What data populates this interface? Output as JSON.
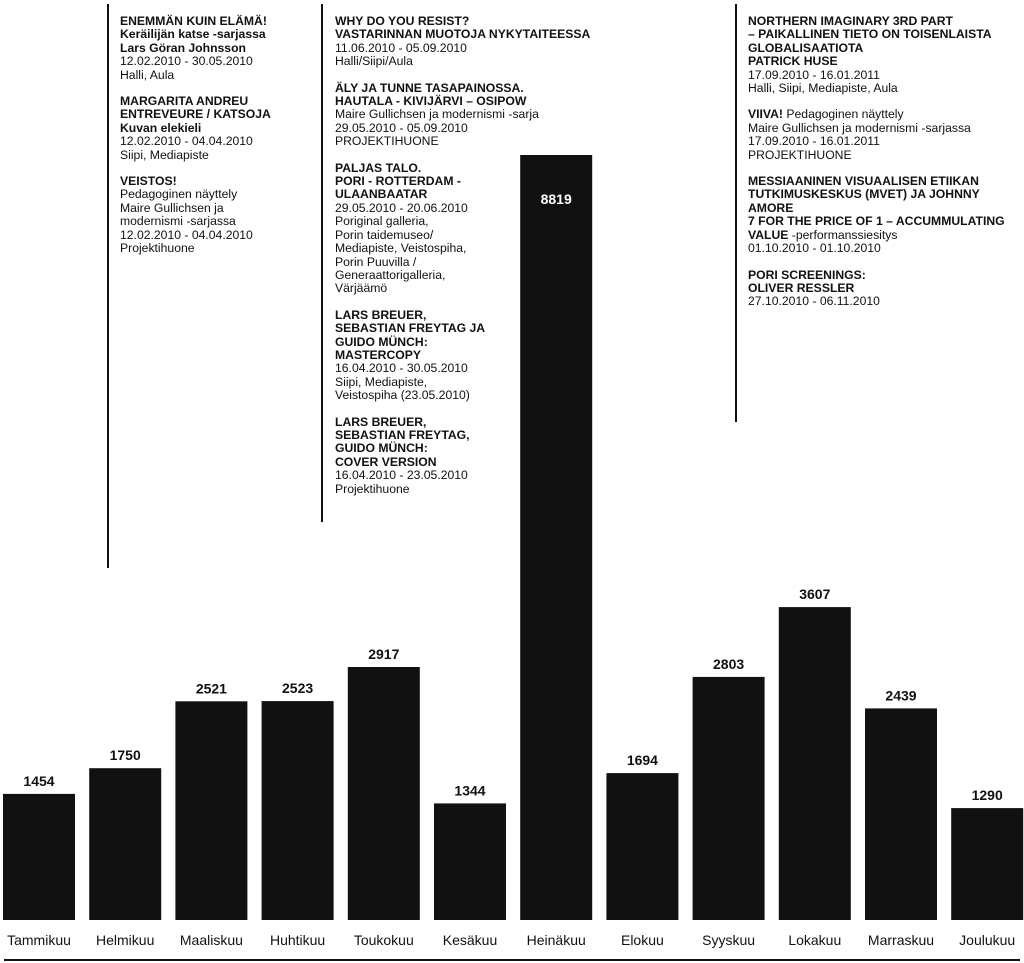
{
  "chart_data": {
    "type": "bar",
    "categories": [
      "Tammikuu",
      "Helmikuu",
      "Maaliskuu",
      "Huhtikuu",
      "Toukokuu",
      "Kesäkuu",
      "Heinäkuu",
      "Elokuu",
      "Syyskuu",
      "Lokakuu",
      "Marraskuu",
      "Joulukuu"
    ],
    "values": [
      1454,
      1750,
      2521,
      2523,
      2917,
      1344,
      8819,
      1694,
      2803,
      3607,
      2439,
      1290
    ],
    "value_labels": [
      "1454",
      "1750",
      "2521",
      "2523",
      "2917",
      "1344",
      "8819",
      "1694",
      "2803",
      "3607",
      "2439",
      "1290"
    ],
    "title": "",
    "xlabel": "",
    "ylabel": "",
    "ylim": [
      0,
      10000
    ],
    "grid": false,
    "bar_color": "#111111",
    "label_inside_bar_index": 6
  },
  "annotations": [
    {
      "groups": [
        [
          {
            "text": "ENEMMÄN KUIN ELÄMÄ!",
            "bold": true
          },
          {
            "text": "Keräilijän katse -sarjassa",
            "bold": true
          },
          {
            "text": "Lars Göran Johnsson",
            "bold": true
          },
          {
            "text": "12.02.2010 - 30.05.2010",
            "bold": false
          },
          {
            "text": "Halli, Aula",
            "bold": false
          }
        ],
        [
          {
            "text": "MARGARITA ANDREU",
            "bold": true
          },
          {
            "text": "ENTREVEURE / KATSOJA",
            "bold": true
          },
          {
            "text": "Kuvan elekieli",
            "bold": true
          },
          {
            "text": "12.02.2010 - 04.04.2010",
            "bold": false
          },
          {
            "text": "Siipi, Mediapiste",
            "bold": false
          }
        ],
        [
          {
            "text": "VEISTOS!",
            "bold": true
          },
          {
            "text": "Pedagoginen näyttely",
            "bold": false
          },
          {
            "text": "Maire Gullichsen ja",
            "bold": false
          },
          {
            "text": "modernismi -sarjassa",
            "bold": false
          },
          {
            "text": "12.02.2010 - 04.04.2010",
            "bold": false
          },
          {
            "text": "Projektihuone",
            "bold": false
          }
        ]
      ]
    },
    {
      "groups": [
        [
          {
            "text": "WHY DO YOU RESIST?",
            "bold": true
          },
          {
            "text": "VASTARINNAN MUOTOJA NYKYTAITEESSA",
            "bold": true
          },
          {
            "text": "11.06.2010 - 05.09.2010",
            "bold": false
          },
          {
            "text": "Halli/Siipi/Aula",
            "bold": false
          }
        ],
        [
          {
            "text": "ÄLY JA TUNNE TASAPAINOSSA.",
            "bold": true
          },
          {
            "text": "HAUTALA - KIVIJÄRVI – OSIPOW",
            "bold": true
          },
          {
            "text": "Maire Gullichsen ja modernismi -sarja",
            "bold": false
          },
          {
            "text": "29.05.2010 - 05.09.2010",
            "bold": false
          },
          {
            "text": "PROJEKTIHUONE",
            "bold": false
          }
        ],
        [
          {
            "text": "PALJAS TALO.",
            "bold": true
          },
          {
            "text": "PORI - ROTTERDAM -",
            "bold": true
          },
          {
            "text": "ULAANBAATAR",
            "bold": true
          },
          {
            "text": "29.05.2010 - 20.06.2010",
            "bold": false
          },
          {
            "text": "Poriginal galleria,",
            "bold": false
          },
          {
            "text": "Porin taidemuseo/",
            "bold": false
          },
          {
            "text": "Mediapiste, Veistospiha,",
            "bold": false
          },
          {
            "text": "Porin Puuvilla /",
            "bold": false
          },
          {
            "text": "Generaattorigalleria,",
            "bold": false
          },
          {
            "text": "Värjäämö",
            "bold": false
          }
        ],
        [
          {
            "text": "LARS BREUER,",
            "bold": true
          },
          {
            "text": "SEBASTIAN FREYTAG JA",
            "bold": true
          },
          {
            "text": "GUIDO MÜNCH:",
            "bold": true
          },
          {
            "text": "MASTERCOPY",
            "bold": true
          },
          {
            "text": "16.04.2010 - 30.05.2010",
            "bold": false
          },
          {
            "text": "Siipi, Mediapiste,",
            "bold": false
          },
          {
            "text": "Veistospiha (23.05.2010)",
            "bold": false
          }
        ],
        [
          {
            "text": "LARS BREUER,",
            "bold": true
          },
          {
            "text": "SEBASTIAN FREYTAG,",
            "bold": true
          },
          {
            "text": "GUIDO MÜNCH:",
            "bold": true
          },
          {
            "text": "COVER VERSION",
            "bold": true
          },
          {
            "text": "16.04.2010 - 23.05.2010",
            "bold": false
          },
          {
            "text": "Projektihuone",
            "bold": false
          }
        ]
      ]
    },
    {
      "groups": [
        [
          {
            "text": "NORTHERN IMAGINARY 3RD PART",
            "bold": true
          },
          {
            "text": "– PAIKALLINEN TIETO ON TOISENLAISTA",
            "bold": true
          },
          {
            "text": "GLOBALISAATIOTA",
            "bold": true
          },
          {
            "text": "PATRICK HUSE",
            "bold": true
          },
          {
            "text": "17.09.2010 - 16.01.2011",
            "bold": false
          },
          {
            "text": "Halli, Siipi, Mediapiste, Aula",
            "bold": false
          }
        ],
        [
          {
            "parts": [
              {
                "text": "VIIVA!",
                "bold": true
              },
              {
                "text": " Pedagoginen näyttely",
                "bold": false
              }
            ]
          },
          {
            "text": "Maire Gullichsen ja modernismi -sarjassa",
            "bold": false
          },
          {
            "text": "17.09.2010 - 16.01.2011",
            "bold": false
          },
          {
            "text": "PROJEKTIHUONE",
            "bold": false
          }
        ],
        [
          {
            "text": "MESSIAANINEN VISUAALISEN ETIIKAN",
            "bold": true
          },
          {
            "text": "TUTKIMUSKESKUS (MVET) JA JOHNNY",
            "bold": true
          },
          {
            "text": "AMORE",
            "bold": true
          },
          {
            "text": "7 FOR THE PRICE OF 1 – ACCUMMULATING",
            "bold": true
          },
          {
            "parts": [
              {
                "text": "VALUE",
                "bold": true
              },
              {
                "text": " -performanssiesitys",
                "bold": false
              }
            ]
          },
          {
            "text": "01.10.2010 - 01.10.2010",
            "bold": false
          }
        ],
        [
          {
            "text": "PORI SCREENINGS:",
            "bold": true
          },
          {
            "text": "OLIVER RESSLER",
            "bold": true
          },
          {
            "text": "27.10.2010 - 06.11.2010",
            "bold": false
          }
        ]
      ]
    }
  ]
}
